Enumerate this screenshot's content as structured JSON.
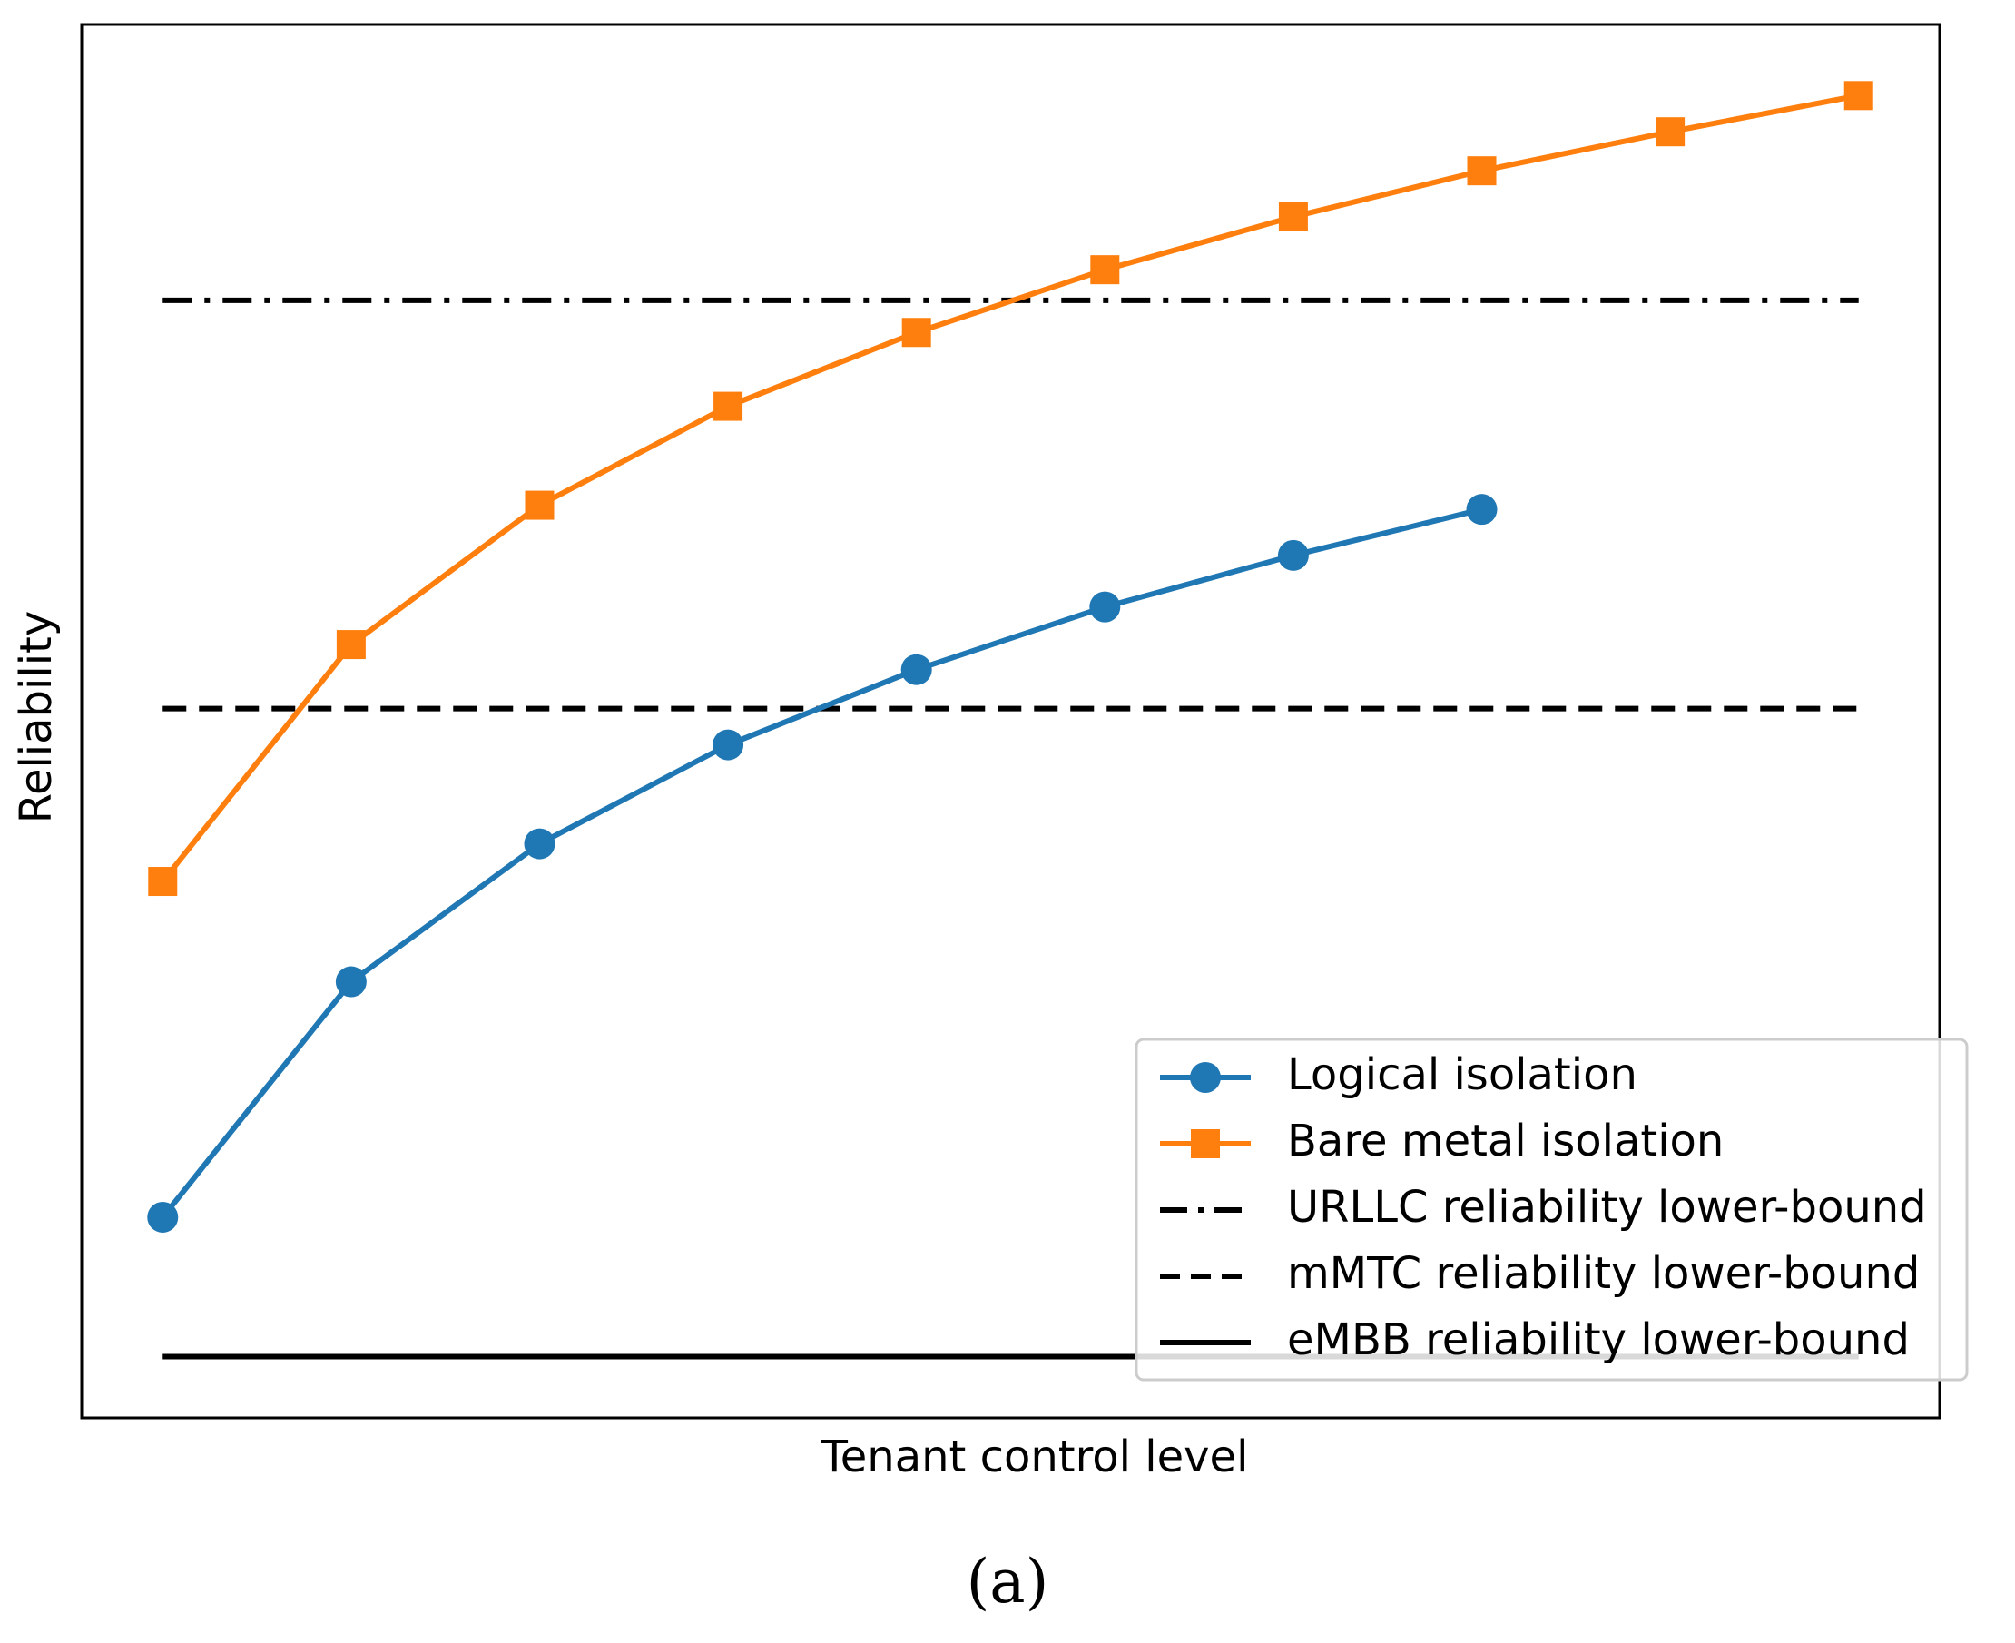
{
  "chart_data": {
    "type": "line",
    "title": "",
    "xlabel": "Tenant control level",
    "ylabel": "Reliability",
    "caption": "(a)",
    "x": [
      0,
      1,
      2,
      3,
      4,
      5,
      6,
      7,
      8,
      9
    ],
    "xlim": [
      -0.43,
      9.43
    ],
    "ylim": [
      0,
      100
    ],
    "grid": false,
    "legend_position": "bottom-right",
    "series": [
      {
        "name": "Logical isolation",
        "color": "#1f77b4",
        "marker": "circle",
        "line_style": "solid",
        "x": [
          0,
          1,
          2,
          3,
          4,
          5,
          6,
          7
        ],
        "values": [
          14.4,
          31.3,
          41.2,
          48.3,
          53.7,
          58.2,
          61.9,
          65.2
        ]
      },
      {
        "name": "Bare metal isolation",
        "color": "#ff7f0e",
        "marker": "square",
        "line_style": "solid",
        "x": [
          0,
          1,
          2,
          3,
          4,
          5,
          6,
          7,
          8,
          9
        ],
        "values": [
          38.5,
          55.5,
          65.5,
          72.6,
          77.9,
          82.4,
          86.2,
          89.5,
          92.3,
          94.9
        ]
      }
    ],
    "reference_lines": [
      {
        "name": "URLLC reliability lower-bound",
        "value": 80.2,
        "color": "#000000",
        "line_style": "dashdot"
      },
      {
        "name": "mMTC reliability lower-bound",
        "value": 50.9,
        "color": "#000000",
        "line_style": "dashed"
      },
      {
        "name": "eMBB reliability lower-bound",
        "value": 4.4,
        "color": "#000000",
        "line_style": "solid"
      }
    ]
  }
}
